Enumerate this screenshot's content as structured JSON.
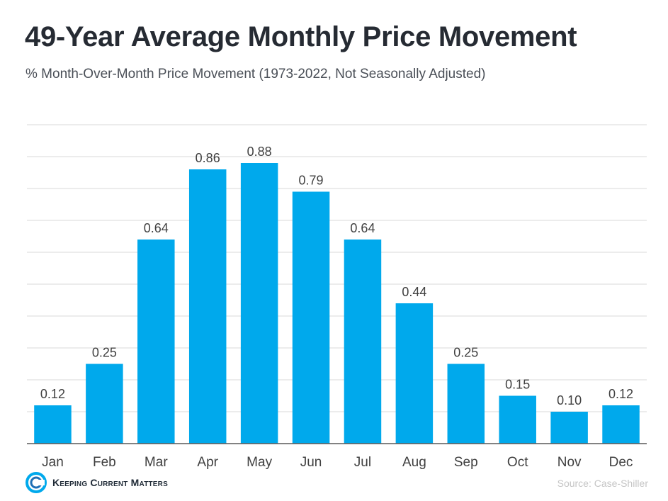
{
  "title": "49-Year Average Monthly Price Movement",
  "subtitle": "% Month-Over-Month Price Movement (1973-2022, Not Seasonally Adjusted)",
  "logo_text": "Keeping Current Matters",
  "source": "Source: Case-Shiller",
  "colors": {
    "bar": "#00a9ec",
    "gridline": "#d9d9d9",
    "axis": "#595959",
    "label": "#404040"
  },
  "chart_data": {
    "type": "bar",
    "title": "49-Year Average Monthly Price Movement",
    "subtitle": "% Month-Over-Month Price Movement (1973-2022, Not Seasonally Adjusted)",
    "categories": [
      "Jan",
      "Feb",
      "Mar",
      "Apr",
      "May",
      "Jun",
      "Jul",
      "Aug",
      "Sep",
      "Oct",
      "Nov",
      "Dec"
    ],
    "values": [
      0.12,
      0.25,
      0.64,
      0.86,
      0.88,
      0.79,
      0.64,
      0.44,
      0.25,
      0.15,
      0.1,
      0.12
    ],
    "value_labels": [
      "0.12",
      "0.25",
      "0.64",
      "0.86",
      "0.88",
      "0.79",
      "0.64",
      "0.44",
      "0.25",
      "0.15",
      "0.10",
      "0.12"
    ],
    "ylim": [
      0,
      1.0
    ],
    "grid_step": 0.1,
    "grid": true,
    "legend": false
  }
}
